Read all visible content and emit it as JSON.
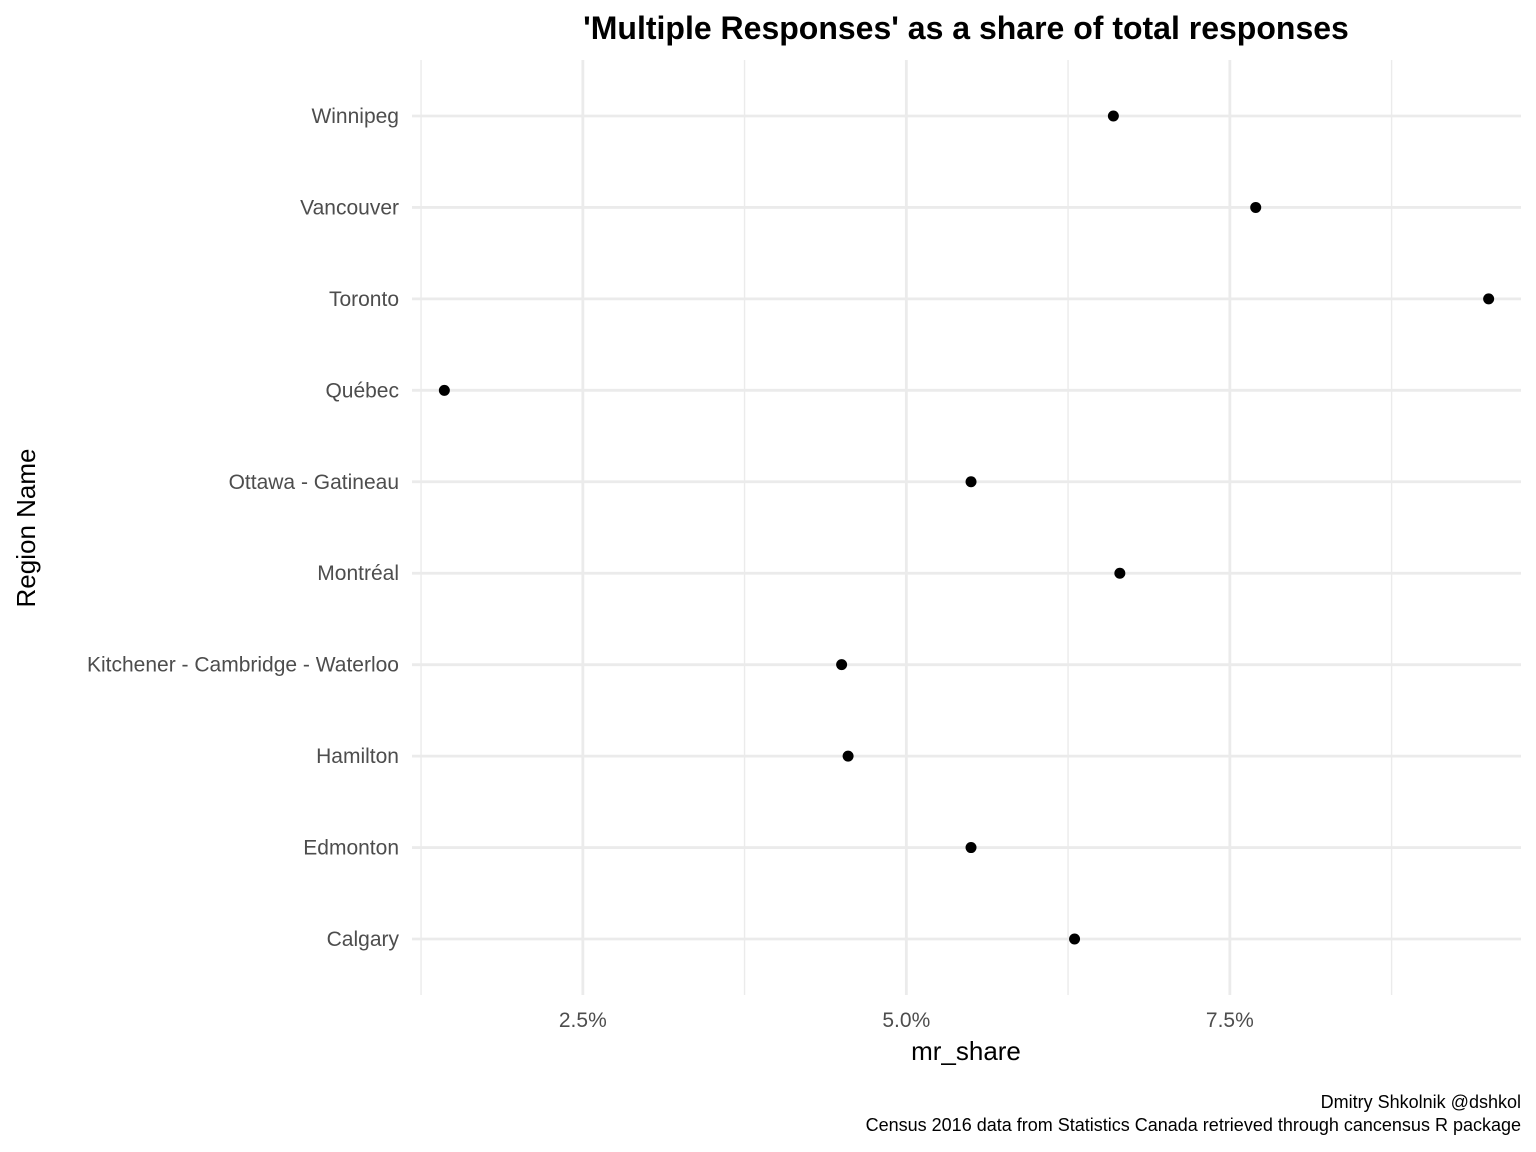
{
  "chart_data": {
    "type": "scatter",
    "title": "'Multiple Responses' as a share of total responses",
    "xlabel": "mr_share",
    "ylabel": "Region Name",
    "categories": [
      "Calgary",
      "Edmonton",
      "Hamilton",
      "Kitchener - Cambridge - Waterloo",
      "Montréal",
      "Ottawa - Gatineau",
      "Québec",
      "Toronto",
      "Vancouver",
      "Winnipeg"
    ],
    "values": [
      0.063,
      0.055,
      0.0455,
      0.045,
      0.0665,
      0.055,
      0.0143,
      0.095,
      0.077,
      0.066
    ],
    "x_ticks": [
      0.025,
      0.05,
      0.075
    ],
    "x_tick_labels": [
      "2.5%",
      "5.0%",
      "7.5%"
    ],
    "xlim": [
      0.0118,
      0.0975
    ],
    "grid": true,
    "point_color": "#000000",
    "grid_color": "#ebebeb",
    "caption": [
      "Dmitry Shkolnik @dshkol",
      "Census 2016 data from Statistics Canada retrieved through cancensus R package"
    ]
  }
}
